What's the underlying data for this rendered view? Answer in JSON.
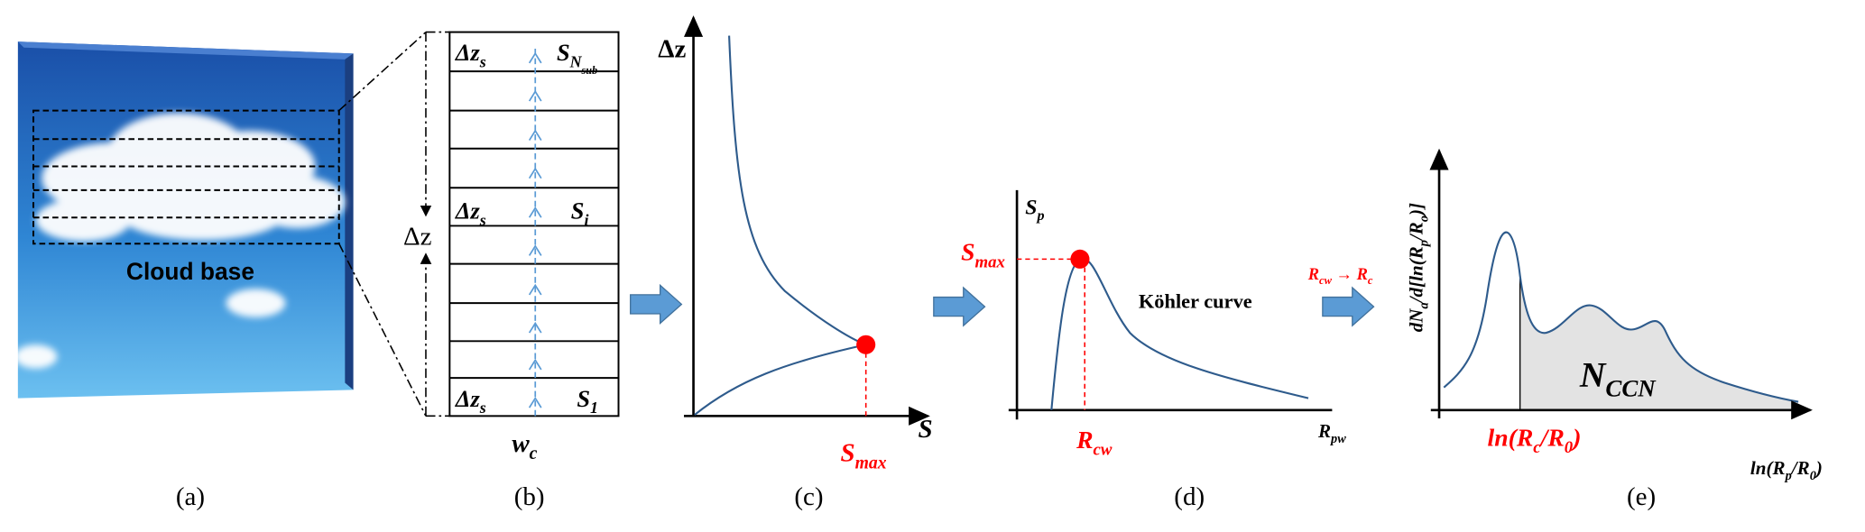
{
  "panels": {
    "a": {
      "label": "Cloud base",
      "caption": "(a)"
    },
    "b": {
      "top_dz": [
        {
          "text": "Δz"
        },
        {
          "text": "s",
          "level": 1
        }
      ],
      "top_s": [
        {
          "text": "S"
        },
        {
          "text": "N",
          "level": 1
        },
        {
          "text": "sub",
          "level": 2
        }
      ],
      "mid_dz": [
        {
          "text": "Δz"
        },
        {
          "text": "s",
          "level": 1
        }
      ],
      "mid_s": [
        {
          "text": "S"
        },
        {
          "text": "i",
          "level": 1
        }
      ],
      "bottom_dz": [
        {
          "text": "Δz"
        },
        {
          "text": "s",
          "level": 1
        }
      ],
      "bottom_s": [
        {
          "text": "S"
        },
        {
          "text": "1",
          "level": 1
        }
      ],
      "height": "Δz",
      "velocity": [
        {
          "text": "w"
        },
        {
          "text": "c",
          "level": 1
        }
      ],
      "caption": "(b)"
    },
    "c": {
      "y_axis": "Δz",
      "x_axis": "S",
      "smax": [
        {
          "text": "S"
        },
        {
          "text": "max",
          "level": 1
        }
      ],
      "caption": "(c)"
    },
    "d": {
      "y_axis": [
        {
          "text": "S"
        },
        {
          "text": "p",
          "level": 1
        }
      ],
      "smax": [
        {
          "text": "S"
        },
        {
          "text": "max",
          "level": 1
        }
      ],
      "curve": "Köhler curve",
      "rcw": [
        {
          "text": "R"
        },
        {
          "text": "cw",
          "level": 1
        }
      ],
      "x_axis": [
        {
          "text": "R"
        },
        {
          "text": "pw",
          "level": 1
        }
      ],
      "caption": "(d)"
    },
    "transition": [
      {
        "text": "R"
      },
      {
        "text": "cw",
        "level": 1
      },
      {
        "text": " → R"
      },
      {
        "text": "c",
        "level": 1
      }
    ],
    "e": {
      "y_axis": [
        {
          "text": "dN"
        },
        {
          "text": "a",
          "level": 1
        },
        {
          "text": "/d[ln(R"
        },
        {
          "text": "p",
          "level": 1
        },
        {
          "text": "/R"
        },
        {
          "text": "o",
          "level": 1
        },
        {
          "text": ")]"
        }
      ],
      "area": [
        {
          "text": "N"
        },
        {
          "text": "CCN",
          "level": 1
        }
      ],
      "rc": [
        {
          "text": "ln(R"
        },
        {
          "text": "c",
          "level": 1
        },
        {
          "text": "/R"
        },
        {
          "text": "0",
          "level": 1
        },
        {
          "text": ")"
        }
      ],
      "x_axis": [
        {
          "text": "ln(R"
        },
        {
          "text": "p",
          "level": 1
        },
        {
          "text": "/R"
        },
        {
          "text": "0",
          "level": 1
        },
        {
          "text": ")"
        }
      ],
      "caption": "(e)"
    }
  }
}
